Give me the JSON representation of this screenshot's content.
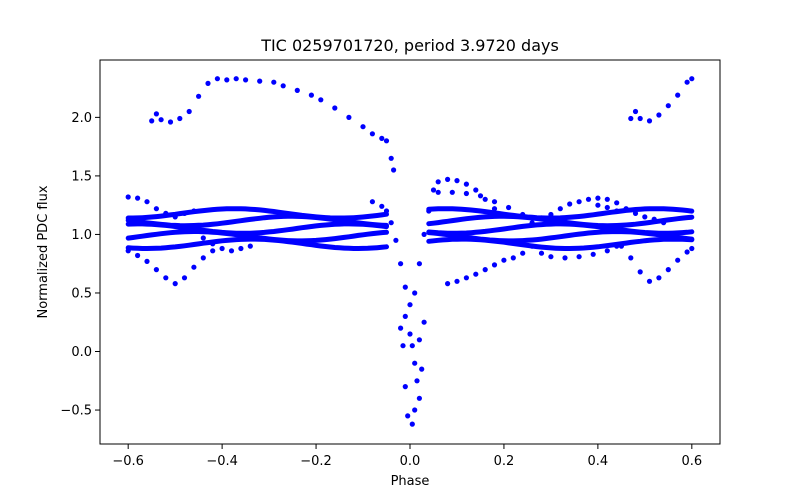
{
  "chart_data": {
    "type": "scatter",
    "title": "TIC 0259701720, period 3.9720 days",
    "xlabel": "Phase",
    "ylabel": "Normalized PDC flux",
    "xlim": [
      -0.66,
      0.66
    ],
    "ylim": [
      -0.79,
      2.49
    ],
    "x_ticks": [
      -0.6,
      -0.4,
      -0.2,
      0.0,
      0.2,
      0.4,
      0.6
    ],
    "x_tick_labels": [
      "−0.6",
      "−0.4",
      "−0.2",
      "0.0",
      "0.2",
      "0.4",
      "0.6"
    ],
    "y_ticks": [
      -0.5,
      0.0,
      0.5,
      1.0,
      1.5,
      2.0
    ],
    "y_tick_labels": [
      "−0.5",
      "0.0",
      "0.5",
      "1.0",
      "1.5",
      "2.0"
    ],
    "grid": false,
    "marker_color": "#0000ff",
    "series": [
      {
        "points": [
          [
            -0.55,
            1.97
          ],
          [
            -0.54,
            2.03
          ],
          [
            -0.53,
            1.98
          ],
          [
            -0.51,
            1.96
          ],
          [
            -0.49,
            1.99
          ],
          [
            -0.47,
            2.05
          ],
          [
            -0.45,
            2.18
          ],
          [
            -0.43,
            2.29
          ],
          [
            -0.41,
            2.33
          ],
          [
            -0.39,
            2.32
          ],
          [
            -0.37,
            2.33
          ],
          [
            -0.35,
            2.32
          ],
          [
            -0.32,
            2.31
          ],
          [
            -0.29,
            2.3
          ],
          [
            -0.27,
            2.27
          ],
          [
            -0.24,
            2.23
          ],
          [
            -0.21,
            2.19
          ],
          [
            -0.19,
            2.15
          ],
          [
            -0.16,
            2.08
          ],
          [
            -0.13,
            2.0
          ],
          [
            -0.1,
            1.92
          ],
          [
            -0.08,
            1.86
          ],
          [
            -0.06,
            1.82
          ],
          [
            -0.05,
            1.8
          ],
          [
            -0.04,
            1.65
          ],
          [
            -0.035,
            1.55
          ],
          [
            0.47,
            1.99
          ],
          [
            0.48,
            2.05
          ],
          [
            0.49,
            1.99
          ],
          [
            0.51,
            1.97
          ],
          [
            0.53,
            2.02
          ],
          [
            0.55,
            2.1
          ],
          [
            0.57,
            2.19
          ],
          [
            0.59,
            2.3
          ],
          [
            0.6,
            2.33
          ],
          [
            -0.6,
            1.32
          ],
          [
            -0.58,
            1.31
          ],
          [
            -0.56,
            1.28
          ],
          [
            -0.54,
            1.22
          ],
          [
            -0.52,
            1.18
          ],
          [
            -0.5,
            1.15
          ],
          [
            -0.48,
            1.18
          ],
          [
            -0.46,
            1.2
          ],
          [
            -0.6,
            0.86
          ],
          [
            -0.58,
            0.82
          ],
          [
            -0.56,
            0.77
          ],
          [
            -0.54,
            0.7
          ],
          [
            -0.52,
            0.63
          ],
          [
            -0.5,
            0.58
          ],
          [
            -0.48,
            0.63
          ],
          [
            -0.46,
            0.72
          ],
          [
            -0.44,
            0.8
          ],
          [
            -0.42,
            0.86
          ],
          [
            -0.44,
            0.97
          ],
          [
            -0.42,
            0.92
          ],
          [
            -0.4,
            0.88
          ],
          [
            -0.38,
            0.86
          ],
          [
            -0.36,
            0.88
          ],
          [
            -0.34,
            0.9
          ],
          [
            -0.08,
            1.28
          ],
          [
            -0.06,
            1.24
          ],
          [
            -0.05,
            1.2
          ],
          [
            -0.04,
            1.1
          ],
          [
            -0.03,
            0.95
          ],
          [
            -0.02,
            0.75
          ],
          [
            -0.01,
            0.55
          ],
          [
            0.0,
            0.4
          ],
          [
            0.01,
            0.5
          ],
          [
            0.02,
            0.75
          ],
          [
            0.03,
            1.0
          ],
          [
            0.04,
            1.2
          ],
          [
            0.05,
            1.38
          ],
          [
            0.06,
            1.45
          ],
          [
            0.08,
            1.47
          ],
          [
            0.1,
            1.46
          ],
          [
            0.12,
            1.43
          ],
          [
            0.14,
            1.38
          ],
          [
            0.16,
            1.3
          ],
          [
            0.18,
            1.22
          ],
          [
            0.2,
            1.16
          ],
          [
            0.06,
            1.36
          ],
          [
            0.09,
            1.36
          ],
          [
            0.12,
            1.35
          ],
          [
            0.15,
            1.33
          ],
          [
            0.18,
            1.28
          ],
          [
            0.21,
            1.23
          ],
          [
            0.24,
            1.17
          ],
          [
            0.08,
            0.58
          ],
          [
            0.1,
            0.6
          ],
          [
            0.12,
            0.63
          ],
          [
            0.14,
            0.66
          ],
          [
            0.16,
            0.7
          ],
          [
            0.18,
            0.74
          ],
          [
            0.2,
            0.78
          ],
          [
            0.22,
            0.8
          ],
          [
            0.24,
            0.84
          ],
          [
            0.26,
            0.9
          ],
          [
            0.28,
            0.84
          ],
          [
            0.3,
            0.81
          ],
          [
            0.33,
            0.8
          ],
          [
            0.36,
            0.81
          ],
          [
            0.39,
            0.83
          ],
          [
            0.42,
            0.86
          ],
          [
            0.44,
            0.9
          ],
          [
            0.26,
            1.1
          ],
          [
            0.28,
            1.14
          ],
          [
            0.3,
            1.17
          ],
          [
            0.32,
            1.22
          ],
          [
            0.34,
            1.26
          ],
          [
            0.36,
            1.28
          ],
          [
            0.38,
            1.3
          ],
          [
            0.4,
            1.31
          ],
          [
            0.42,
            1.3
          ],
          [
            0.44,
            1.27
          ],
          [
            0.46,
            1.22
          ],
          [
            0.48,
            1.18
          ],
          [
            0.5,
            1.15
          ],
          [
            0.52,
            1.13
          ],
          [
            0.54,
            1.1
          ],
          [
            0.4,
            1.25
          ],
          [
            0.42,
            1.23
          ],
          [
            0.44,
            1.2
          ],
          [
            0.45,
            0.9
          ],
          [
            0.47,
            0.8
          ],
          [
            0.49,
            0.68
          ],
          [
            0.51,
            0.6
          ],
          [
            0.53,
            0.63
          ],
          [
            0.55,
            0.7
          ],
          [
            0.57,
            0.78
          ],
          [
            0.59,
            0.85
          ],
          [
            0.6,
            0.88
          ],
          [
            -0.01,
            0.3
          ],
          [
            0.0,
            0.15
          ],
          [
            0.005,
            0.05
          ],
          [
            0.01,
            -0.1
          ],
          [
            0.015,
            -0.25
          ],
          [
            0.02,
            -0.4
          ],
          [
            -0.005,
            -0.55
          ],
          [
            0.005,
            -0.62
          ],
          [
            0.01,
            -0.5
          ],
          [
            -0.01,
            -0.3
          ],
          [
            0.02,
            0.1
          ],
          [
            0.03,
            0.25
          ],
          [
            0.025,
            -0.15
          ],
          [
            -0.015,
            0.05
          ],
          [
            -0.02,
            0.2
          ]
        ]
      }
    ]
  }
}
